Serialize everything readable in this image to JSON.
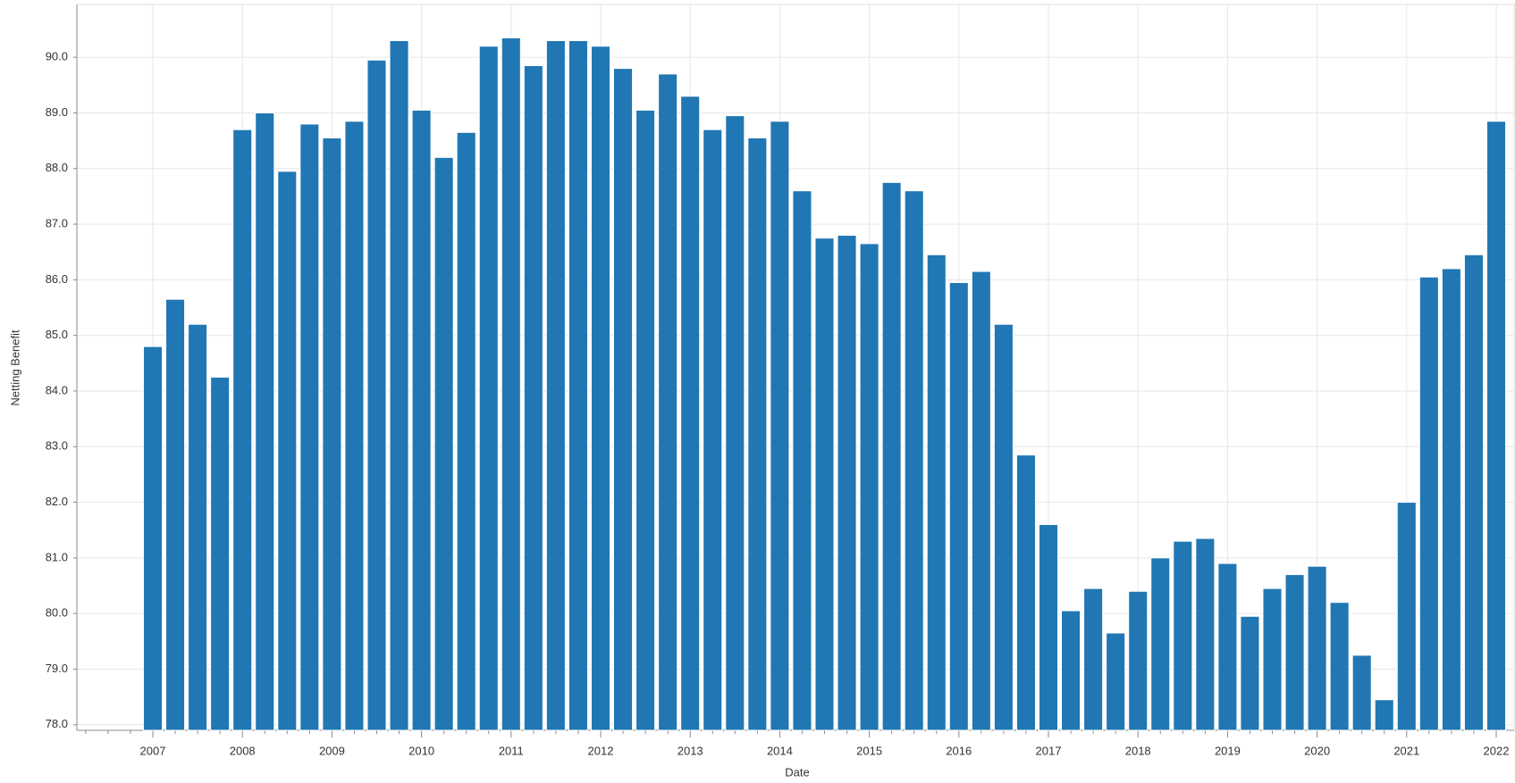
{
  "chart_data": {
    "type": "bar",
    "x_label": "Date",
    "y_label": "Netting Benefit",
    "categories": [
      "2007",
      null,
      null,
      null,
      "2008",
      null,
      null,
      null,
      "2009",
      null,
      null,
      null,
      "2010",
      null,
      null,
      null,
      "2011",
      null,
      null,
      null,
      "2012",
      null,
      null,
      null,
      "2013",
      null,
      null,
      null,
      "2014",
      null,
      null,
      null,
      "2015",
      null,
      null,
      null,
      "2016",
      null,
      null,
      null,
      "2017",
      null,
      null,
      null,
      "2018",
      null,
      null,
      null,
      "2019",
      null,
      null,
      null,
      "2020",
      null,
      null,
      null,
      "2021",
      null,
      null,
      null,
      "2022"
    ],
    "values": [
      84.8,
      85.65,
      85.2,
      84.25,
      88.7,
      89.0,
      87.95,
      88.8,
      88.55,
      88.85,
      89.95,
      90.3,
      89.05,
      88.2,
      88.65,
      90.2,
      90.35,
      89.85,
      90.3,
      90.3,
      90.2,
      89.8,
      89.05,
      89.7,
      89.3,
      88.7,
      88.95,
      88.55,
      88.85,
      87.6,
      86.75,
      86.8,
      86.65,
      87.75,
      87.6,
      86.45,
      85.95,
      86.15,
      85.2,
      82.85,
      81.6,
      80.05,
      80.45,
      79.65,
      80.4,
      81.0,
      81.3,
      81.35,
      80.9,
      79.95,
      80.45,
      80.7,
      80.85,
      80.2,
      79.25,
      78.45,
      82.0,
      86.05,
      86.2,
      86.45,
      88.85
    ],
    "color": "#2177b3",
    "ylim": [
      77.9,
      90.95
    ],
    "yticks": [
      {
        "value": 78,
        "label": "78.0"
      },
      {
        "value": 79,
        "label": "79.0"
      },
      {
        "value": 80,
        "label": "80.0"
      },
      {
        "value": 81,
        "label": "81.0"
      },
      {
        "value": 82,
        "label": "82.0"
      },
      {
        "value": 83,
        "label": "83.0"
      },
      {
        "value": 84,
        "label": "84.0"
      },
      {
        "value": 85,
        "label": "85.0"
      },
      {
        "value": 86,
        "label": "86.0"
      },
      {
        "value": 87,
        "label": "87.0"
      },
      {
        "value": 88,
        "label": "88.0"
      },
      {
        "value": 89,
        "label": "89.0"
      },
      {
        "value": 90,
        "label": "90.0"
      }
    ],
    "grid": true
  }
}
